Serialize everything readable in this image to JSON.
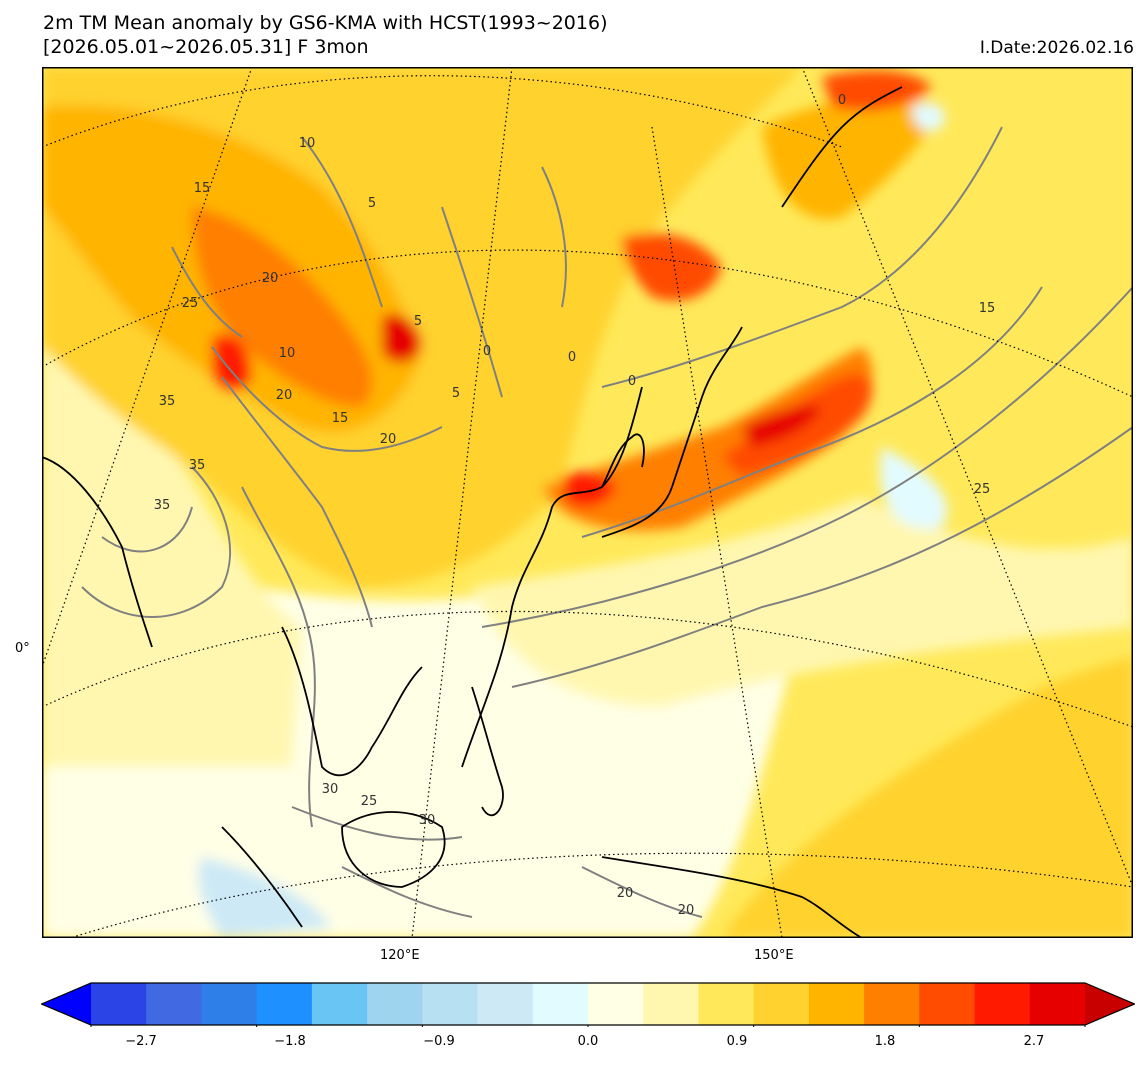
{
  "header": {
    "title_line1": "2m TM Mean anomaly by GS6-KMA with HCST(1993~2016)",
    "title_line2": "[2026.05.01~2026.05.31] F 3mon",
    "init_date": "I.Date:2026.02.16"
  },
  "map": {
    "lon_labels": [
      "120°E",
      "150°E"
    ],
    "lat_labels": [
      "0°"
    ],
    "contour_labels": [
      "10",
      "15",
      "20",
      "25",
      "5",
      "10",
      "20",
      "35",
      "35",
      "35",
      "15",
      "20",
      "5",
      "5",
      "0",
      "0",
      "0",
      "15",
      "25",
      "30",
      "25",
      "30",
      "20",
      "20",
      "0"
    ],
    "colors": {
      "coastline": "#000000",
      "contour": "#808080",
      "graticule": "#000000"
    }
  },
  "colorbar": {
    "tick_labels": [
      "−2.7",
      "−1.8",
      "−0.9",
      "0.0",
      "0.9",
      "1.8",
      "2.7"
    ],
    "levels": [
      -3.0,
      -2.7,
      -2.4,
      -2.1,
      -1.8,
      -1.5,
      -1.2,
      -0.9,
      -0.6,
      -0.3,
      0.0,
      0.3,
      0.6,
      0.9,
      1.2,
      1.5,
      1.8,
      2.1,
      2.4,
      2.7,
      3.0
    ],
    "colors": [
      "#0000ff",
      "#2a44e6",
      "#4169e1",
      "#2e7fe8",
      "#1e90ff",
      "#69c5f4",
      "#9fd4ef",
      "#b8e0f3",
      "#cde9f6",
      "#e2fbff",
      "#ffffe6",
      "#fff7b0",
      "#ffe95a",
      "#ffd22f",
      "#ffb400",
      "#ff7f00",
      "#ff4c00",
      "#ff1a00",
      "#e60000",
      "#c80000"
    ]
  }
}
